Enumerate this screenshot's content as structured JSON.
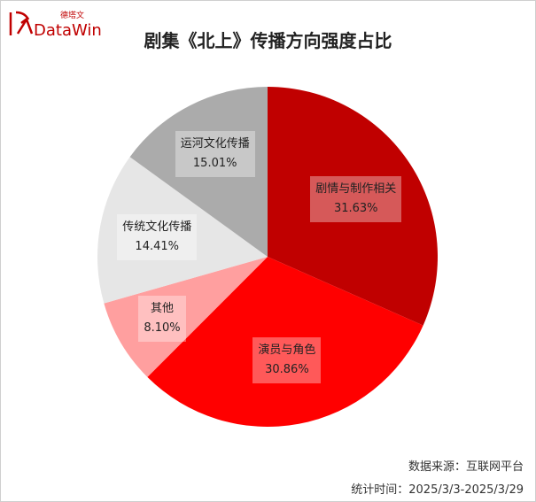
{
  "logo": {
    "cn": "德塔文",
    "en": "DataWin"
  },
  "chart_data": {
    "type": "pie",
    "title": "剧集《北上》传播方向强度占比",
    "slices": [
      {
        "label": "剧情与制作相关",
        "value": 31.63,
        "value_text": "31.63%",
        "color": "#c00000"
      },
      {
        "label": "演员与角色",
        "value": 30.86,
        "value_text": "30.86%",
        "color": "#ff0000"
      },
      {
        "label": "其他",
        "value": 8.1,
        "value_text": "8.10%",
        "color": "#ff9f9f"
      },
      {
        "label": "传统文化传播",
        "value": 14.41,
        "value_text": "14.41%",
        "color": "#e6e6e6"
      },
      {
        "label": "运河文化传播",
        "value": 15.01,
        "value_text": "15.01%",
        "color": "#ababab"
      }
    ]
  },
  "footer": {
    "source": "数据来源：互联网平台",
    "period": "统计时间：2025/3/3-2025/3/29"
  }
}
